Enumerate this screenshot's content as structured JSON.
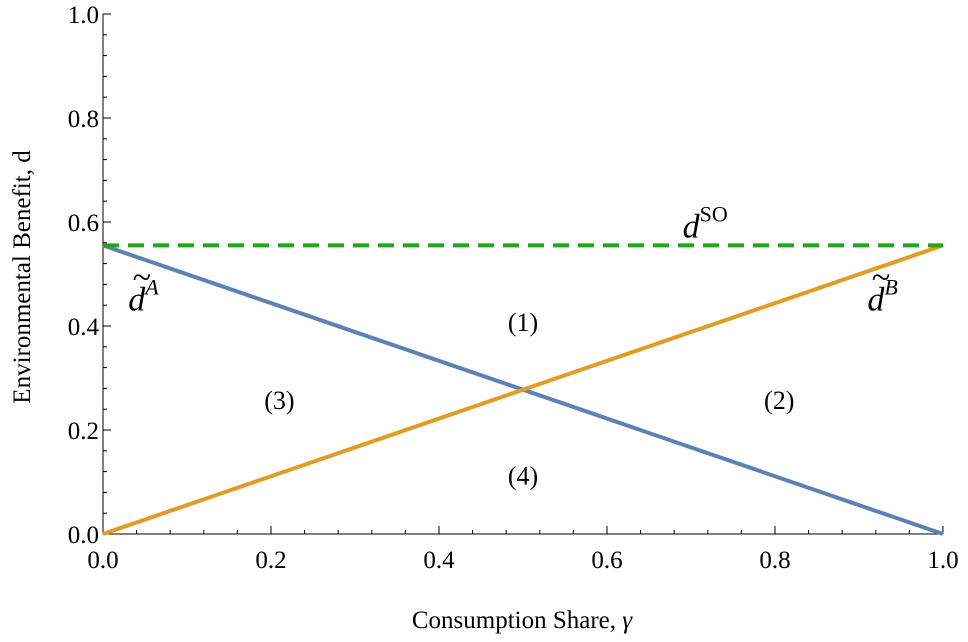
{
  "chart_data": {
    "type": "line",
    "xlabel": "Consumption Share, ",
    "xlabel_symbol": "γ",
    "ylabel": "Environmental Benefit, d",
    "xlim": [
      0,
      1
    ],
    "ylim": [
      0,
      1
    ],
    "x_ticks": [
      "0.0",
      "0.2",
      "0.4",
      "0.6",
      "0.8",
      "1.0"
    ],
    "y_ticks": [
      "0.0",
      "0.2",
      "0.4",
      "0.6",
      "0.8",
      "1.0"
    ],
    "grid": false,
    "series": [
      {
        "id": "dA",
        "color": "#5e81b5",
        "dashed": false,
        "label_base": "d",
        "label_sup": "A",
        "label_accent": "~",
        "points": [
          [
            0,
            0.555
          ],
          [
            1,
            0.0
          ]
        ]
      },
      {
        "id": "dB",
        "color": "#e19c24",
        "dashed": false,
        "label_base": "d",
        "label_sup": "B",
        "label_accent": "~",
        "points": [
          [
            0,
            0.0
          ],
          [
            1,
            0.555
          ]
        ]
      },
      {
        "id": "dSO",
        "color": "#22a51b",
        "dashed": true,
        "label_base": "d",
        "label_sup": "SO",
        "label_accent": "",
        "points": [
          [
            0,
            0.555
          ],
          [
            1,
            0.555
          ]
        ]
      }
    ],
    "curve_label_positions": {
      "dA": [
        0.03,
        0.43
      ],
      "dB": [
        0.91,
        0.43
      ],
      "dSO": [
        0.69,
        0.57
      ]
    },
    "regions": [
      {
        "label": "(1)",
        "x": 0.5,
        "y": 0.39
      },
      {
        "label": "(2)",
        "x": 0.805,
        "y": 0.24
      },
      {
        "label": "(3)",
        "x": 0.21,
        "y": 0.24
      },
      {
        "label": "(4)",
        "x": 0.5,
        "y": 0.095
      }
    ]
  }
}
